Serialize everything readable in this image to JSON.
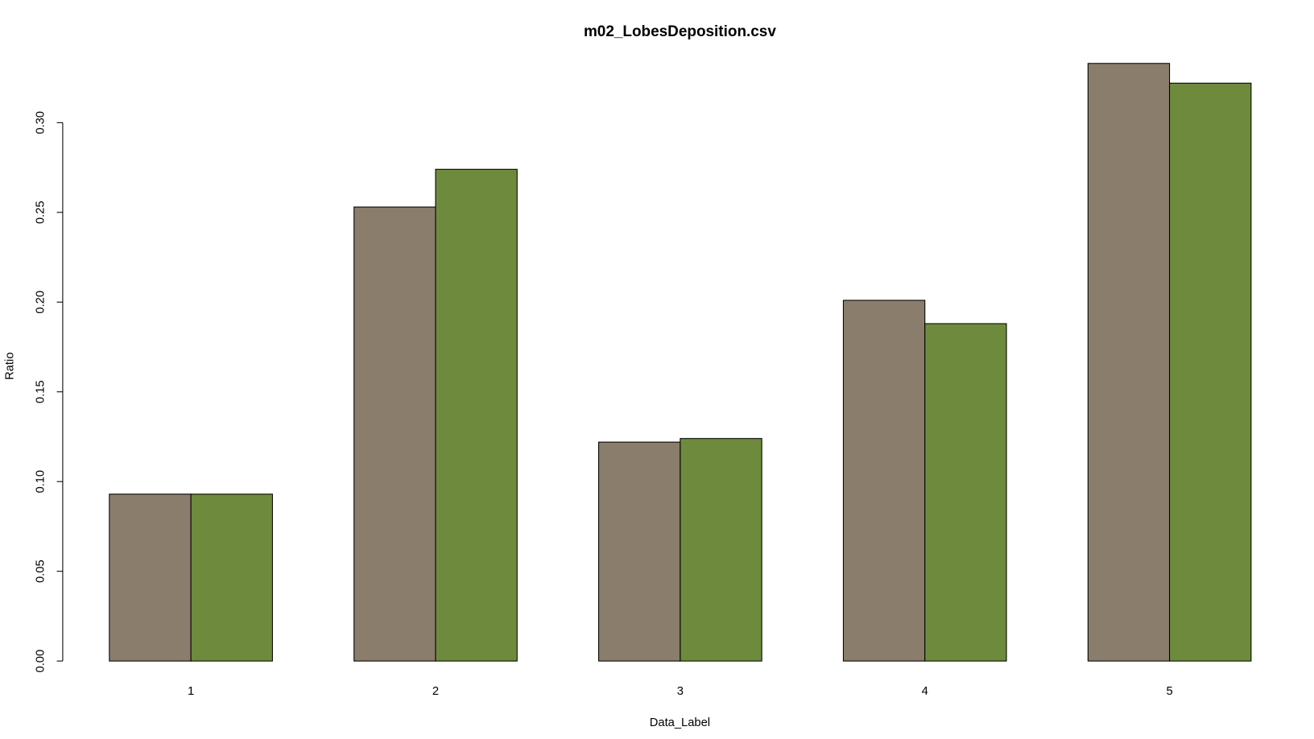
{
  "chart_data": {
    "type": "bar",
    "title": "m02_LobesDeposition.csv",
    "x_label": "Data_Label",
    "y_label": "Ratio",
    "categories": [
      "1",
      "2",
      "3",
      "4",
      "5"
    ],
    "series": [
      {
        "color": "#8b7d6b",
        "values": [
          0.093,
          0.253,
          0.122,
          0.201,
          0.333
        ]
      },
      {
        "color": "#6e8b3d",
        "values": [
          0.093,
          0.274,
          0.124,
          0.188,
          0.322
        ]
      }
    ],
    "ylim": [
      0,
      0.34
    ],
    "yticks": [
      {
        "value": 0,
        "label": "0.00"
      },
      {
        "value": 0.05,
        "label": "0.05"
      },
      {
        "value": 0.1,
        "label": "0.10"
      },
      {
        "value": 0.15,
        "label": "0.15"
      },
      {
        "value": 0.2,
        "label": "0.20"
      },
      {
        "value": 0.25,
        "label": "0.25"
      },
      {
        "value": 0.3,
        "label": "0.30"
      }
    ]
  }
}
